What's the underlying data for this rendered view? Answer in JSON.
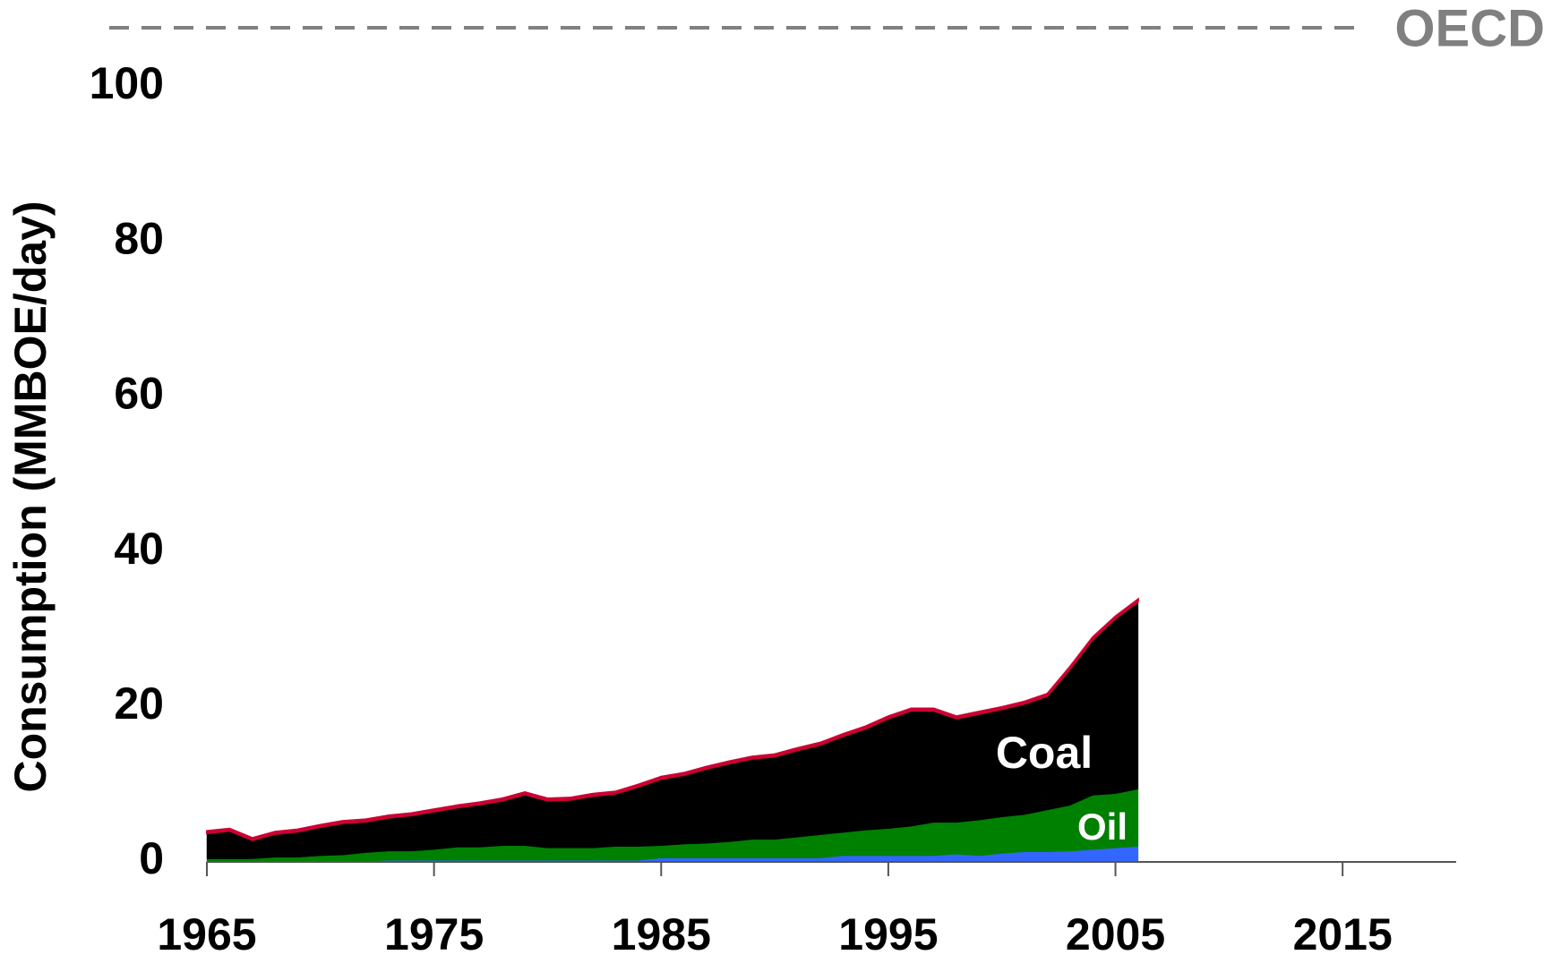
{
  "chart_data": {
    "type": "stacked_area",
    "title": "OECD",
    "ylabel": "Consumption (MMBOE/day)",
    "x": [
      1965,
      1966,
      1967,
      1968,
      1969,
      1970,
      1971,
      1972,
      1973,
      1974,
      1975,
      1976,
      1977,
      1978,
      1979,
      1980,
      1981,
      1982,
      1983,
      1984,
      1985,
      1986,
      1987,
      1988,
      1989,
      1990,
      1991,
      1992,
      1993,
      1994,
      1995,
      1996,
      1997,
      1998,
      1999,
      2000,
      2001,
      2002,
      2003,
      2004,
      2005,
      2006
    ],
    "series": [
      {
        "color": "#3366ff",
        "values": [
          0.1,
          0.1,
          0.1,
          0.1,
          0.1,
          0.1,
          0.1,
          0.1,
          0.2,
          0.2,
          0.2,
          0.2,
          0.2,
          0.2,
          0.2,
          0.2,
          0.2,
          0.2,
          0.2,
          0.2,
          0.5,
          0.5,
          0.5,
          0.5,
          0.5,
          0.5,
          0.5,
          0.5,
          0.8,
          0.8,
          0.8,
          0.8,
          0.8,
          1.0,
          0.8,
          1.1,
          1.3,
          1.3,
          1.4,
          1.6,
          1.8,
          2.0
        ]
      },
      {
        "name": "Oil",
        "color": "#008000",
        "values": [
          0.3,
          0.3,
          0.3,
          0.5,
          0.5,
          0.7,
          0.8,
          1.1,
          1.2,
          1.2,
          1.4,
          1.7,
          1.7,
          1.9,
          1.9,
          1.6,
          1.6,
          1.6,
          1.8,
          1.8,
          1.6,
          1.8,
          1.9,
          2.1,
          2.4,
          2.4,
          2.7,
          3.0,
          3.0,
          3.3,
          3.5,
          3.8,
          4.3,
          4.1,
          4.6,
          4.7,
          4.8,
          5.4,
          5.9,
          7.0,
          7.0,
          7.4
        ]
      },
      {
        "name": "Coal",
        "color": "#000000",
        "values": [
          3.3,
          3.6,
          2.4,
          3.0,
          3.3,
          3.7,
          4.1,
          4.0,
          4.3,
          4.6,
          4.9,
          5.1,
          5.5,
          5.8,
          6.6,
          6.1,
          6.2,
          6.7,
          6.8,
          7.7,
          8.6,
          8.9,
          9.6,
          10.1,
          10.4,
          10.7,
          11.2,
          11.6,
          12.4,
          13.1,
          14.2,
          14.9,
          14.4,
          13.4,
          13.7,
          13.9,
          14.3,
          14.7,
          17.6,
          20.1,
          22.6,
          24.2
        ]
      },
      {
        "color": "#cc0033",
        "values": [
          0.3,
          0.3,
          0.3,
          0.3,
          0.3,
          0.3,
          0.3,
          0.3,
          0.3,
          0.3,
          0.3,
          0.3,
          0.3,
          0.3,
          0.3,
          0.3,
          0.3,
          0.3,
          0.3,
          0.3,
          0.3,
          0.3,
          0.3,
          0.3,
          0.3,
          0.3,
          0.3,
          0.3,
          0.3,
          0.3,
          0.3,
          0.3,
          0.3,
          0.3,
          0.3,
          0.3,
          0.3,
          0.3,
          0.3,
          0.3,
          0.3,
          0.3
        ]
      }
    ],
    "xlim": [
      1965,
      2020
    ],
    "xticks": [
      1965,
      1975,
      1985,
      1995,
      2005,
      2015
    ],
    "ylim": [
      0,
      100
    ],
    "yticks": [
      0,
      20,
      40,
      60,
      80,
      100
    ]
  }
}
